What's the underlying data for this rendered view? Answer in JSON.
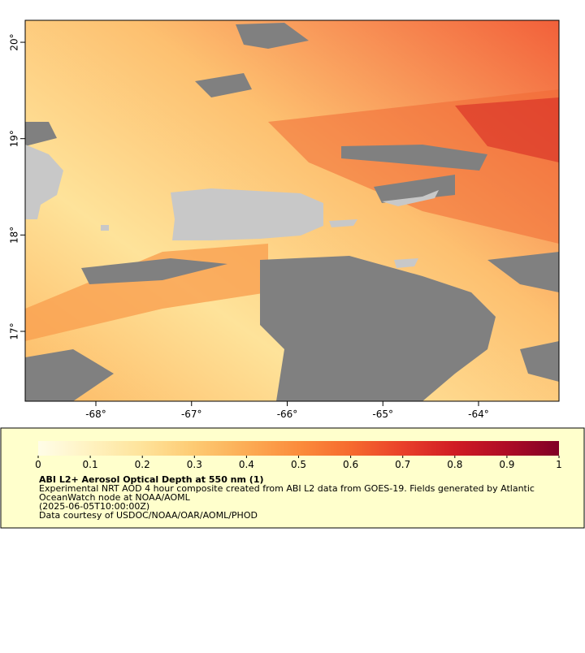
{
  "map": {
    "xlim": [
      -68.739,
      -63.159
    ],
    "ylim": [
      16.275,
      20.228
    ],
    "xticks": [
      {
        "value": -68,
        "label": "-68°"
      },
      {
        "value": -67,
        "label": "-67°"
      },
      {
        "value": -66,
        "label": "-66°"
      },
      {
        "value": -65,
        "label": "-65°"
      },
      {
        "value": -64,
        "label": "-64°"
      }
    ],
    "yticks": [
      {
        "value": 17,
        "label": "17°"
      },
      {
        "value": 18,
        "label": "18°"
      },
      {
        "value": 19,
        "label": "19°"
      },
      {
        "value": 20,
        "label": "20°"
      }
    ]
  },
  "colorbar": {
    "lim": [
      0,
      1
    ],
    "ticks": [
      0,
      0.1,
      0.2,
      0.3,
      0.4,
      0.5,
      0.6,
      0.7,
      0.8,
      0.9,
      1
    ],
    "colors": [
      "#fffde8",
      "#fff2c0",
      "#fee39a",
      "#fdca72",
      "#fcac55",
      "#fb8c3c",
      "#f66a2e",
      "#e9402a",
      "#d01c24",
      "#ae0c26",
      "#800026"
    ]
  },
  "legend": {
    "title": "ABI L2+ Aerosol Optical Depth at 550 nm (1)",
    "lines": [
      "Experimental NRT AOD 4 hour composite created from ABI L2 data from GOES-19. Fields generated by Atlantic",
      "OceanWatch node at NOAA/AOML",
      "(2025-06-05T10:00:00Z)",
      "Data courtesy of USDOC/NOAA/OAR/AOML/PHOD"
    ]
  }
}
